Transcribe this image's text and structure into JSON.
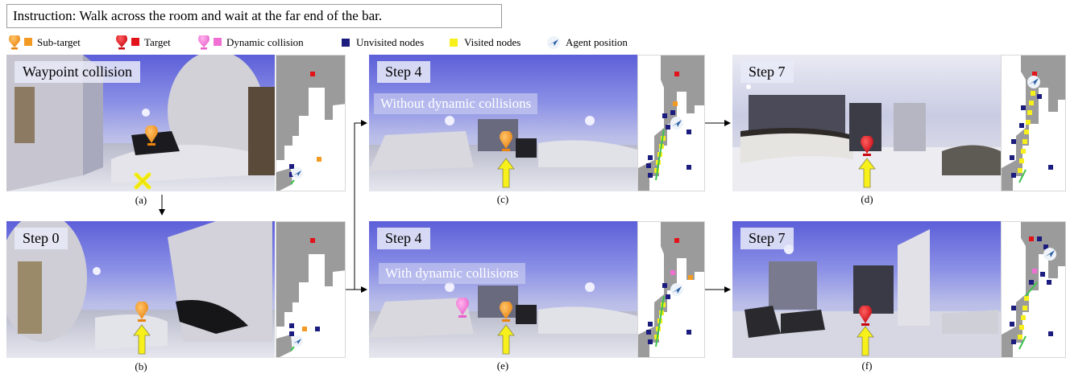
{
  "instruction": "Instruction: Walk across the room and wait at the far end of the bar.",
  "legend": [
    {
      "label": "Sub-target",
      "icon": "orange-pin-and-square-icon",
      "color": "#f29a22"
    },
    {
      "label": "Target",
      "icon": "red-pin-and-square-icon",
      "color": "#e3131b"
    },
    {
      "label": "Dynamic collision",
      "icon": "pink-pin-and-square-icon",
      "color": "#f06fd3"
    },
    {
      "label": "Unvisited nodes",
      "icon": "navy-square-icon",
      "color": "#1c1c7e"
    },
    {
      "label": "Visited nodes",
      "icon": "yellow-square-icon",
      "color": "#f7f01a"
    },
    {
      "label": "Agent position",
      "icon": "agent-arrow-icon",
      "color": "#3b6fb0"
    }
  ],
  "panels": {
    "a": {
      "label": "Waypoint collision",
      "caption": "(a)"
    },
    "b": {
      "label": "Step 0",
      "caption": "(b)"
    },
    "c": {
      "label": "Step 4",
      "sublabel": "Without dynamic collisions",
      "caption": "(c)"
    },
    "e": {
      "label": "Step 4",
      "sublabel": "With dynamic collisions",
      "caption": "(e)"
    },
    "d": {
      "label": "Step 7",
      "caption": "(d)"
    },
    "f": {
      "label": "Step 7",
      "caption": "(f)"
    }
  },
  "colors": {
    "subtarget": "#f29a22",
    "target": "#e3131b",
    "dynamic": "#f06fd3",
    "unvisited": "#1c1c7e",
    "visited": "#f7f01a",
    "path": "#3cc44a",
    "map_wall": "#9b9b9b"
  }
}
